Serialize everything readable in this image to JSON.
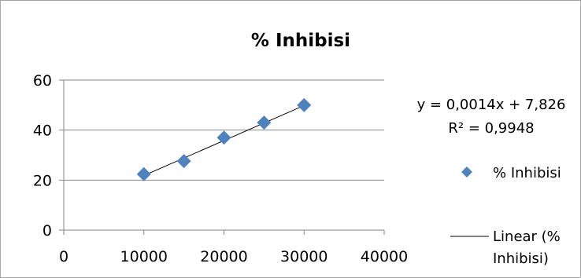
{
  "chart_data": {
    "type": "scatter",
    "title": "% Inhibisi",
    "xlabel": "",
    "ylabel": "",
    "xlim": [
      0,
      40000
    ],
    "ylim": [
      0,
      60
    ],
    "x_ticks": [
      0,
      10000,
      20000,
      30000,
      40000
    ],
    "y_ticks": [
      0,
      20,
      40,
      60
    ],
    "grid": "horizontal",
    "series": [
      {
        "name": "% Inhibisi",
        "marker": "diamond",
        "color": "#4f81bd",
        "x": [
          10000,
          15000,
          20000,
          25000,
          30000
        ],
        "y": [
          22.4,
          27.6,
          37.0,
          43.0,
          50.0
        ]
      }
    ],
    "trendline": {
      "name": "Linear (% Inhibisi)",
      "type": "linear",
      "slope": 0.0014,
      "intercept": 7.826,
      "color": "#000000",
      "equation": "y = 0,0014x + 7,826",
      "r_squared": "R² = 0,9948"
    },
    "legend": {
      "position": "right",
      "entries": [
        {
          "label": "% Inhibisi"
        },
        {
          "label_line1": "Linear (%",
          "label_line2": "Inhibisi)"
        }
      ]
    }
  }
}
